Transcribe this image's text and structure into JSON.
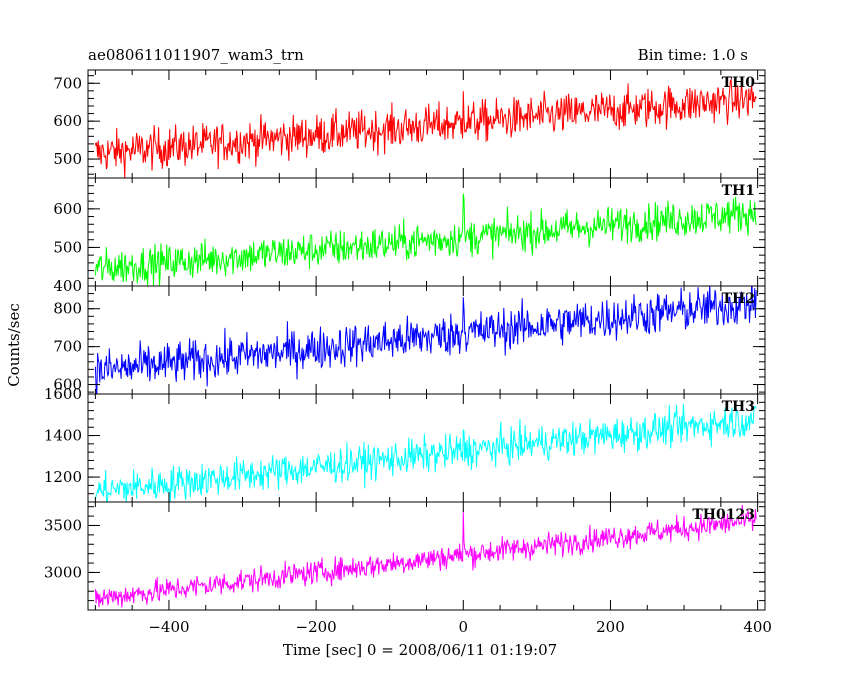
{
  "title": "ae080611011907_wam3_trn",
  "bin_time": "Bin time: 1.0 s",
  "chart_data": {
    "type": "line",
    "title": "ae080611011907_wam3_trn",
    "subtitle": "Bin time: 1.0 s",
    "xlabel": "Time [sec] 0 = 2008/06/11 01:19:07",
    "ylabel": "Counts/sec",
    "xlim": [
      -510,
      410
    ],
    "x_ticks": [
      -400,
      -200,
      0,
      200,
      400
    ],
    "x_tick_labels": [
      "−400",
      "−200",
      "0",
      "200",
      "400"
    ],
    "x_range": [
      -500,
      398
    ],
    "burst_time": 0,
    "panels": [
      {
        "name": "TH0",
        "color": "#ff0000",
        "ylim": [
          450,
          735
        ],
        "y_ticks": [
          500,
          600,
          700
        ],
        "y_tick_labels": [
          "500",
          "600",
          "700"
        ],
        "start": 515,
        "end": 660,
        "noise": 27,
        "spike": 125
      },
      {
        "name": "TH1",
        "color": "#00ff00",
        "ylim": [
          400,
          680
        ],
        "y_ticks": [
          400,
          500,
          600
        ],
        "y_tick_labels": [
          "400",
          "500",
          "600"
        ],
        "start": 445,
        "end": 590,
        "noise": 24,
        "spike": 150
      },
      {
        "name": "TH2",
        "color": "#0000ff",
        "ylim": [
          575,
          860
        ],
        "y_ticks": [
          600,
          700,
          800
        ],
        "y_tick_labels": [
          "600",
          "700",
          "800"
        ],
        "start": 635,
        "end": 815,
        "noise": 28,
        "spike": 150
      },
      {
        "name": "TH3",
        "color": "#00ffff",
        "ylim": [
          1080,
          1600
        ],
        "y_ticks": [
          1200,
          1400,
          1600
        ],
        "y_tick_labels": [
          "1200",
          "1400",
          "1600"
        ],
        "start": 1130,
        "end": 1480,
        "noise": 42,
        "spike": 90
      },
      {
        "name": "TH0123",
        "color": "#ff00ff",
        "ylim": [
          2600,
          3750
        ],
        "y_ticks": [
          3000,
          3500
        ],
        "y_tick_labels": [
          "3000",
          "3500"
        ],
        "start": 2720,
        "end": 3560,
        "noise": 65,
        "spike": 480
      }
    ]
  }
}
